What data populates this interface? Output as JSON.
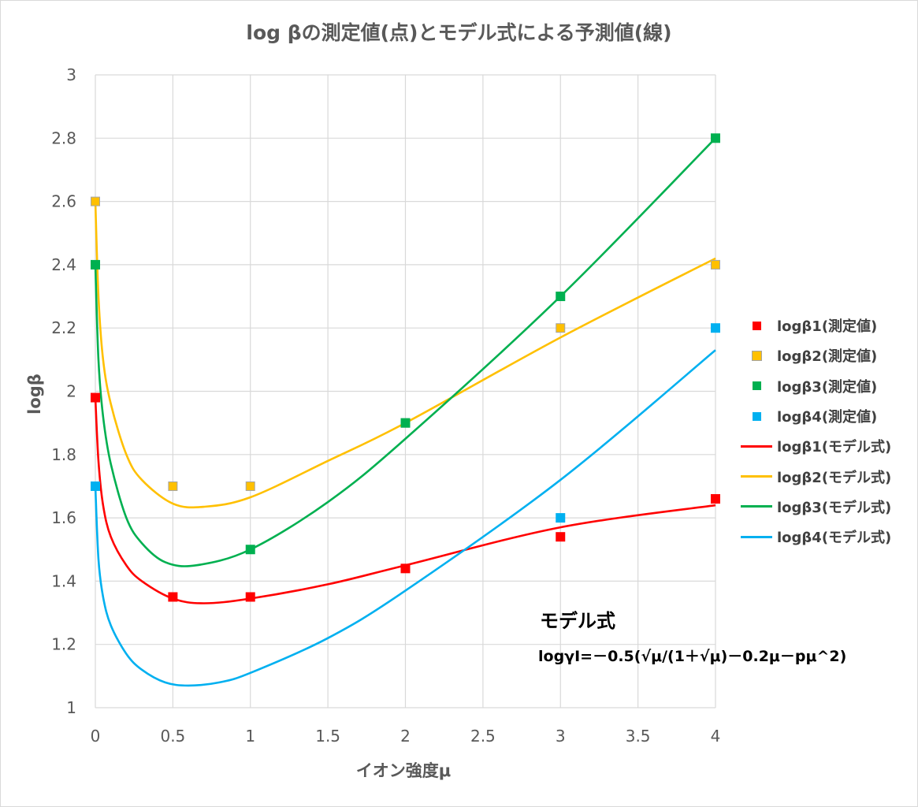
{
  "chart_data": {
    "type": "scatter",
    "title": "log βの測定値(点)とモデル式による予測値(線)",
    "xlabel": "イオン強度μ",
    "ylabel": "logβ",
    "xlim": [
      0,
      4
    ],
    "ylim": [
      1,
      3
    ],
    "x_ticks": [
      "0",
      "0.5",
      "1",
      "1.5",
      "2",
      "2.5",
      "3",
      "3.5",
      "4"
    ],
    "y_ticks": [
      "1",
      "1.2",
      "1.4",
      "1.6",
      "1.8",
      "2",
      "2.2",
      "2.4",
      "2.6",
      "2.8",
      "3"
    ],
    "grid": true,
    "legend_position": "right",
    "measured_series": [
      {
        "name": "logβ1(測定値)",
        "color": "#ff0000",
        "x": [
          0,
          0.5,
          1,
          2,
          3,
          4
        ],
        "y": [
          1.98,
          1.35,
          1.35,
          1.44,
          1.54,
          1.66
        ]
      },
      {
        "name": "logβ2(測定値)",
        "color": "#ffc000",
        "x": [
          0,
          0.5,
          1,
          2,
          3,
          4
        ],
        "y": [
          2.6,
          1.7,
          1.7,
          1.9,
          2.2,
          2.4
        ]
      },
      {
        "name": "logβ3(測定値)",
        "color": "#00b050",
        "x": [
          0,
          1,
          2,
          3,
          4
        ],
        "y": [
          2.4,
          1.5,
          1.9,
          2.3,
          2.8
        ]
      },
      {
        "name": "logβ4(測定値)",
        "color": "#00b0f0",
        "x": [
          0,
          3,
          4
        ],
        "y": [
          1.7,
          1.6,
          2.2
        ]
      }
    ],
    "model_series": [
      {
        "name": "logβ1(モデル式)",
        "color": "#ff0000",
        "x": [
          0,
          0.02,
          0.05,
          0.1,
          0.2,
          0.3,
          0.5,
          0.7,
          1,
          1.5,
          2,
          3,
          4
        ],
        "y": [
          1.98,
          1.78,
          1.64,
          1.54,
          1.45,
          1.4,
          1.345,
          1.33,
          1.345,
          1.39,
          1.45,
          1.57,
          1.64
        ]
      },
      {
        "name": "logβ2(モデル式)",
        "color": "#ffc000",
        "x": [
          0,
          0.02,
          0.05,
          0.1,
          0.2,
          0.3,
          0.5,
          0.7,
          1,
          1.5,
          2,
          3,
          4
        ],
        "y": [
          2.6,
          2.3,
          2.1,
          1.96,
          1.8,
          1.72,
          1.645,
          1.635,
          1.665,
          1.78,
          1.9,
          2.17,
          2.42
        ]
      },
      {
        "name": "logβ3(モデル式)",
        "color": "#00b050",
        "x": [
          0,
          0.02,
          0.05,
          0.1,
          0.2,
          0.3,
          0.45,
          0.65,
          1,
          1.5,
          2,
          3,
          4
        ],
        "y": [
          2.4,
          2.1,
          1.92,
          1.77,
          1.6,
          1.52,
          1.46,
          1.45,
          1.5,
          1.65,
          1.85,
          2.3,
          2.8
        ]
      },
      {
        "name": "logβ4(モデル式)",
        "color": "#00b0f0",
        "x": [
          0,
          0.02,
          0.05,
          0.1,
          0.2,
          0.3,
          0.45,
          0.6,
          0.8,
          1,
          1.5,
          2,
          3,
          4
        ],
        "y": [
          1.7,
          1.47,
          1.35,
          1.26,
          1.17,
          1.12,
          1.08,
          1.07,
          1.08,
          1.11,
          1.22,
          1.37,
          1.72,
          2.13
        ]
      }
    ],
    "annotation": {
      "title": "モデル式",
      "formula": "logγI=－0.5(√μ/(1＋√μ)－0.2μ－pμ^2)"
    }
  }
}
